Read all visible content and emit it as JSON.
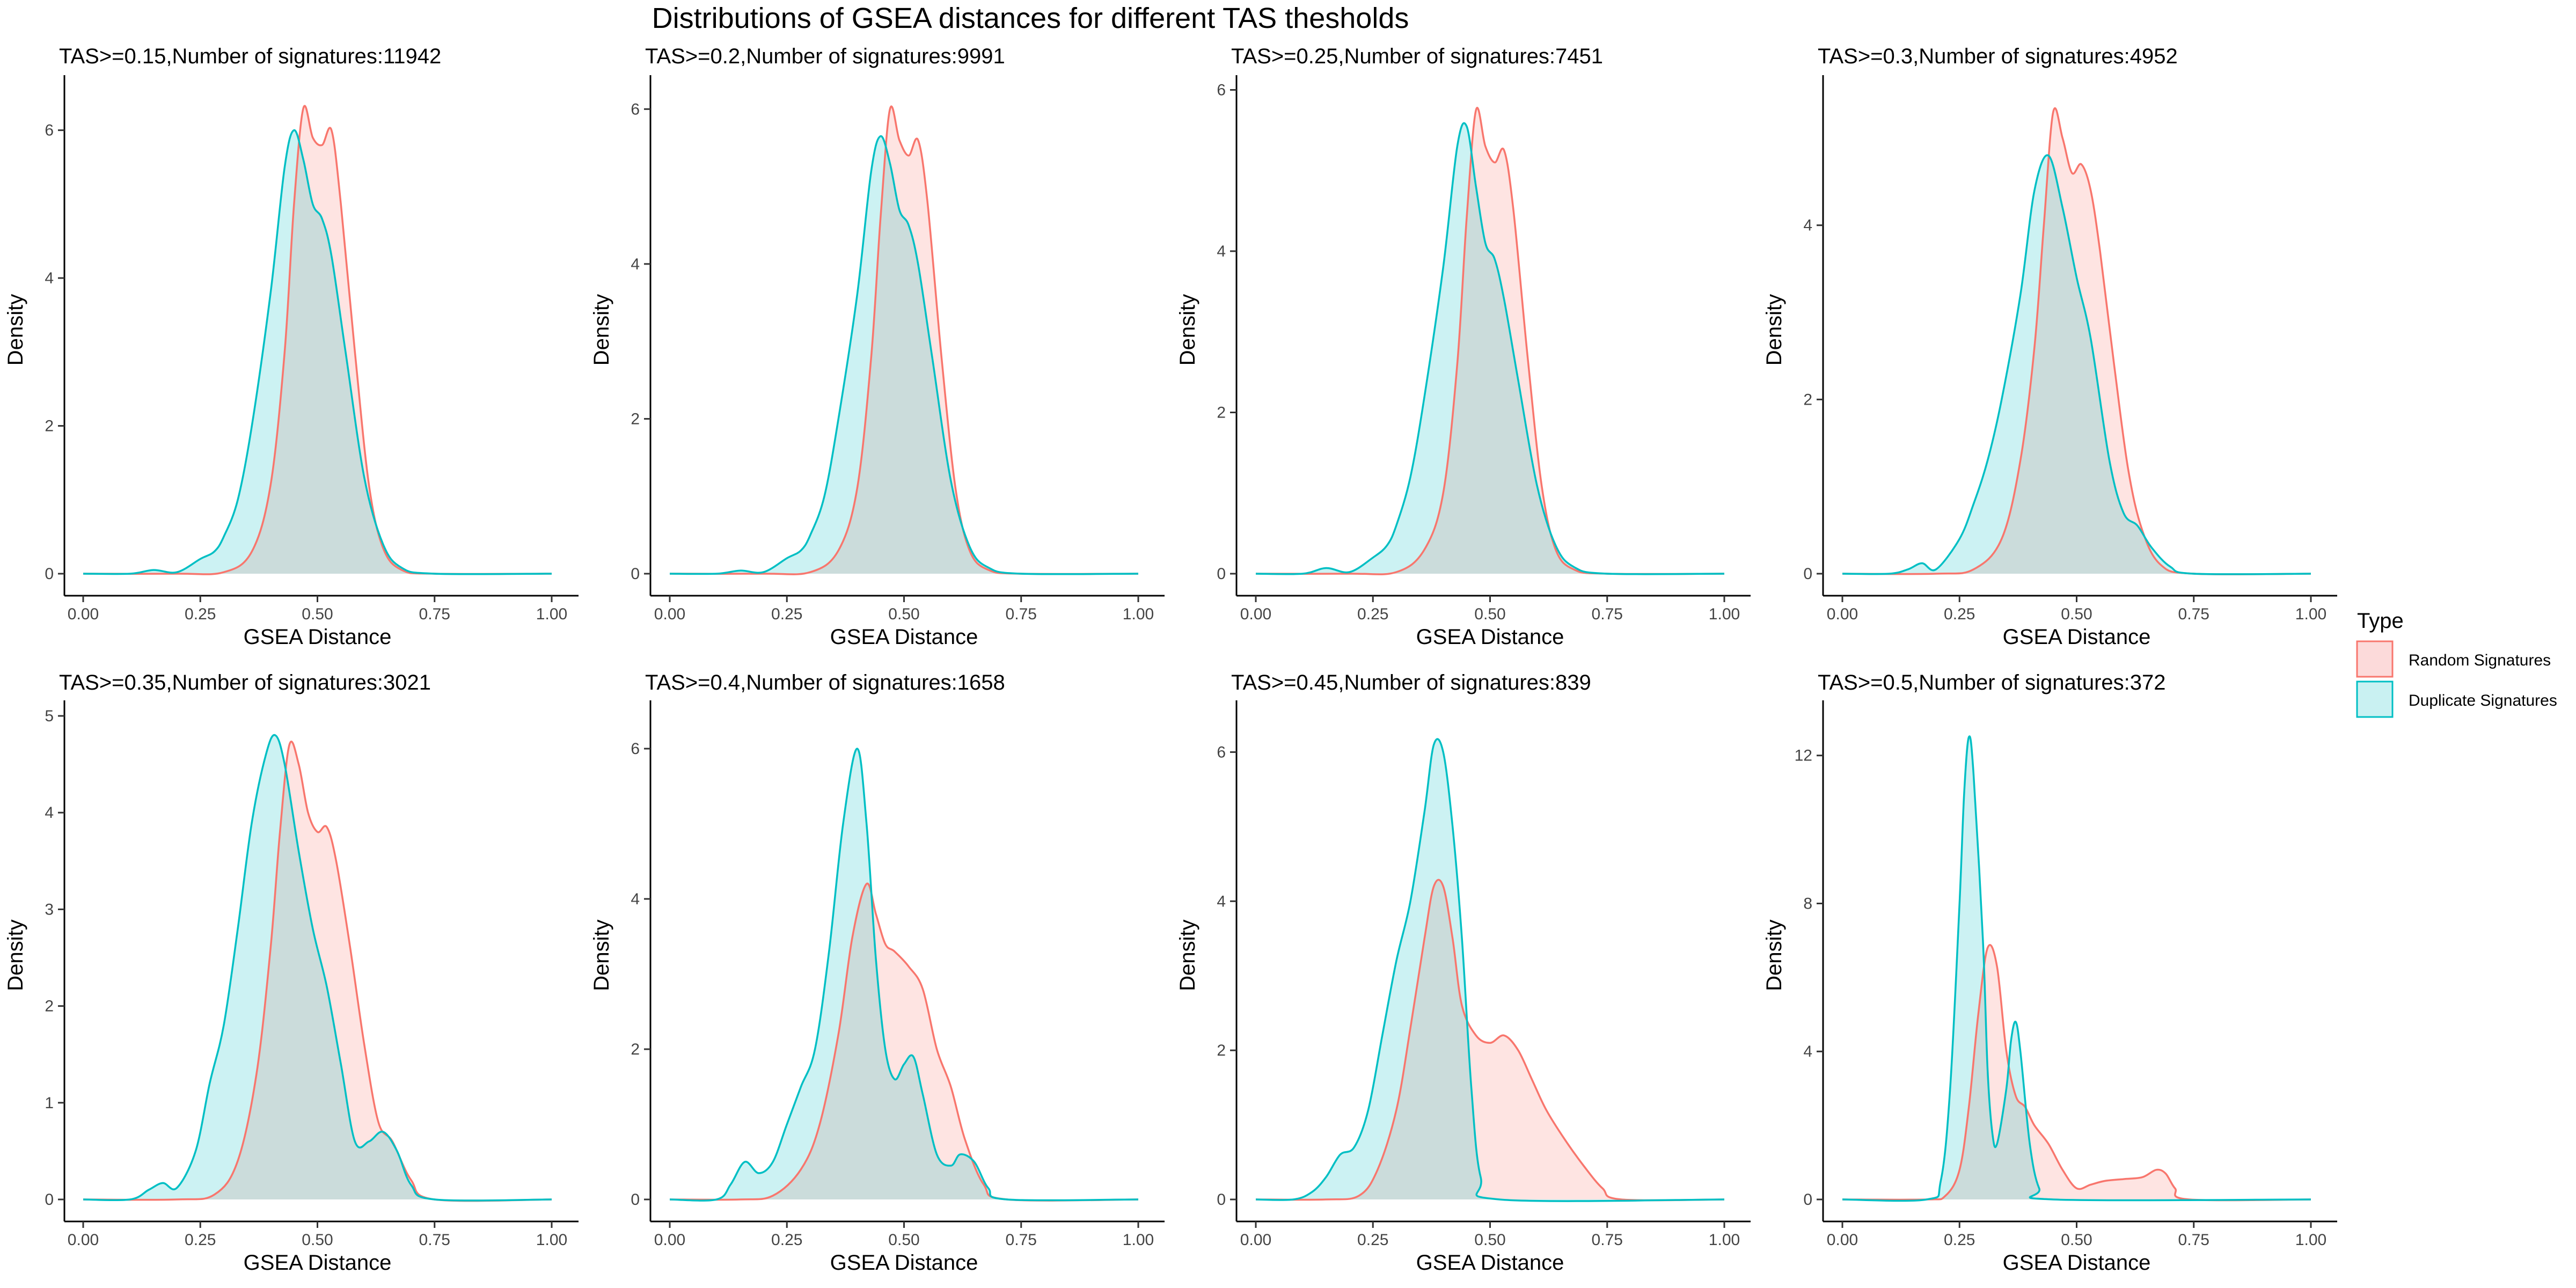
{
  "figure": {
    "title": "Distributions of GSEA distances for different TAS thesholds"
  },
  "legend": {
    "title": "Type",
    "items": [
      {
        "label": "Random Signatures",
        "line_color": "#F8766D",
        "fill_color": "#FCDADA"
      },
      {
        "label": "Duplicate Signatures",
        "line_color": "#00BFC4",
        "fill_color": "#C9F1F2"
      }
    ]
  },
  "chart_data": [
    {
      "type": "area",
      "title": "TAS>=0.15,Number of signatures:11942",
      "xlabel": "GSEA Distance",
      "ylabel": "Density",
      "xlim": [
        0,
        1
      ],
      "ylim": [
        0,
        6.6
      ],
      "xticks": [
        "0.00",
        "0.25",
        "0.50",
        "0.75",
        "1.00"
      ],
      "yticks": [
        0,
        2,
        4,
        6
      ],
      "series": [
        {
          "name": "Random Signatures",
          "x": [
            0,
            0.2,
            0.3,
            0.36,
            0.4,
            0.43,
            0.45,
            0.47,
            0.49,
            0.51,
            0.53,
            0.55,
            0.58,
            0.61,
            0.64,
            0.68,
            0.75,
            1
          ],
          "y": [
            0,
            0,
            0.02,
            0.3,
            1.2,
            3.0,
            5.0,
            6.3,
            5.9,
            5.8,
            6.0,
            5.0,
            3.0,
            1.2,
            0.35,
            0.05,
            0,
            0
          ]
        },
        {
          "name": "Duplicate Signatures",
          "x": [
            0,
            0.1,
            0.15,
            0.2,
            0.25,
            0.28,
            0.3,
            0.33,
            0.36,
            0.4,
            0.43,
            0.45,
            0.47,
            0.49,
            0.51,
            0.53,
            0.56,
            0.6,
            0.64,
            0.68,
            0.75,
            1
          ],
          "y": [
            0,
            0,
            0.05,
            0.02,
            0.2,
            0.3,
            0.5,
            1.0,
            2.0,
            3.8,
            5.5,
            6.0,
            5.6,
            5.0,
            4.8,
            4.3,
            3.0,
            1.3,
            0.4,
            0.08,
            0,
            0
          ]
        }
      ]
    },
    {
      "type": "area",
      "title": "TAS>=0.2,Number of signatures:9991",
      "xlabel": "GSEA Distance",
      "ylabel": "Density",
      "xlim": [
        0,
        1
      ],
      "ylim": [
        0,
        6.3
      ],
      "xticks": [
        "0.00",
        "0.25",
        "0.50",
        "0.75",
        "1.00"
      ],
      "yticks": [
        0,
        2,
        4,
        6
      ],
      "series": [
        {
          "name": "Random Signatures",
          "x": [
            0,
            0.2,
            0.3,
            0.36,
            0.4,
            0.43,
            0.45,
            0.47,
            0.49,
            0.51,
            0.53,
            0.55,
            0.58,
            0.61,
            0.64,
            0.68,
            0.75,
            1
          ],
          "y": [
            0,
            0,
            0.02,
            0.3,
            1.1,
            2.8,
            4.6,
            6.0,
            5.6,
            5.4,
            5.6,
            4.8,
            2.8,
            1.1,
            0.3,
            0.05,
            0,
            0
          ]
        },
        {
          "name": "Duplicate Signatures",
          "x": [
            0,
            0.1,
            0.15,
            0.2,
            0.25,
            0.28,
            0.3,
            0.33,
            0.36,
            0.4,
            0.43,
            0.45,
            0.47,
            0.49,
            0.51,
            0.53,
            0.56,
            0.6,
            0.64,
            0.68,
            0.75,
            1
          ],
          "y": [
            0,
            0,
            0.04,
            0.02,
            0.2,
            0.3,
            0.5,
            1.0,
            2.0,
            3.6,
            5.2,
            5.65,
            5.3,
            4.7,
            4.5,
            4.0,
            2.8,
            1.2,
            0.35,
            0.08,
            0,
            0
          ]
        }
      ]
    },
    {
      "type": "area",
      "title": "TAS>=0.25,Number of signatures:7451",
      "xlabel": "GSEA Distance",
      "ylabel": "Density",
      "xlim": [
        0,
        1
      ],
      "ylim": [
        0,
        6.05
      ],
      "xticks": [
        "0.00",
        "0.25",
        "0.50",
        "0.75",
        "1.00"
      ],
      "yticks": [
        0,
        2,
        4,
        6
      ],
      "series": [
        {
          "name": "Random Signatures",
          "x": [
            0,
            0.2,
            0.3,
            0.36,
            0.4,
            0.43,
            0.45,
            0.47,
            0.49,
            0.51,
            0.53,
            0.55,
            0.58,
            0.61,
            0.64,
            0.68,
            0.75,
            1
          ],
          "y": [
            0,
            0,
            0.02,
            0.3,
            1.0,
            2.6,
            4.4,
            5.75,
            5.3,
            5.1,
            5.25,
            4.5,
            2.7,
            1.1,
            0.3,
            0.05,
            0,
            0
          ]
        },
        {
          "name": "Duplicate Signatures",
          "x": [
            0,
            0.1,
            0.15,
            0.2,
            0.25,
            0.28,
            0.3,
            0.33,
            0.36,
            0.4,
            0.43,
            0.45,
            0.47,
            0.49,
            0.51,
            0.53,
            0.56,
            0.6,
            0.64,
            0.68,
            0.75,
            1
          ],
          "y": [
            0,
            0,
            0.07,
            0.02,
            0.2,
            0.35,
            0.6,
            1.2,
            2.2,
            3.8,
            5.3,
            5.55,
            4.8,
            4.1,
            3.9,
            3.4,
            2.4,
            1.1,
            0.35,
            0.08,
            0,
            0
          ]
        }
      ]
    },
    {
      "type": "area",
      "title": "TAS>=0.3,Number of signatures:4952",
      "xlabel": "GSEA Distance",
      "ylabel": "Density",
      "xlim": [
        0,
        1
      ],
      "ylim": [
        0,
        5.6
      ],
      "xticks": [
        "0.00",
        "0.25",
        "0.50",
        "0.75",
        "1.00"
      ],
      "yticks": [
        0,
        2,
        4
      ],
      "series": [
        {
          "name": "Random Signatures",
          "x": [
            0,
            0.2,
            0.28,
            0.34,
            0.38,
            0.41,
            0.43,
            0.45,
            0.47,
            0.49,
            0.51,
            0.53,
            0.55,
            0.58,
            0.61,
            0.64,
            0.68,
            0.75,
            1
          ],
          "y": [
            0,
            0,
            0.05,
            0.4,
            1.3,
            2.6,
            4.0,
            5.3,
            5.0,
            4.6,
            4.7,
            4.4,
            3.7,
            2.4,
            1.2,
            0.5,
            0.1,
            0,
            0
          ]
        },
        {
          "name": "Duplicate Signatures",
          "x": [
            0,
            0.1,
            0.14,
            0.17,
            0.2,
            0.25,
            0.28,
            0.31,
            0.34,
            0.38,
            0.41,
            0.44,
            0.47,
            0.5,
            0.53,
            0.57,
            0.6,
            0.63,
            0.66,
            0.7,
            0.75,
            1
          ],
          "y": [
            0,
            0,
            0.05,
            0.12,
            0.05,
            0.4,
            0.8,
            1.3,
            2.0,
            3.2,
            4.4,
            4.8,
            4.2,
            3.4,
            2.7,
            1.3,
            0.7,
            0.55,
            0.3,
            0.08,
            0,
            0
          ]
        }
      ]
    },
    {
      "type": "area",
      "title": "TAS>=0.35,Number of signatures:3021",
      "xlabel": "GSEA Distance",
      "ylabel": "Density",
      "xlim": [
        0,
        1
      ],
      "ylim": [
        0,
        5.05
      ],
      "xticks": [
        "0.00",
        "0.25",
        "0.50",
        "0.75",
        "1.00"
      ],
      "yticks": [
        0,
        1,
        2,
        3,
        4,
        5
      ],
      "series": [
        {
          "name": "Random Signatures",
          "x": [
            0,
            0.2,
            0.28,
            0.33,
            0.37,
            0.4,
            0.42,
            0.44,
            0.46,
            0.48,
            0.5,
            0.52,
            0.54,
            0.57,
            0.6,
            0.63,
            0.66,
            0.7,
            0.75,
            1
          ],
          "y": [
            0,
            0,
            0.05,
            0.4,
            1.3,
            2.6,
            3.8,
            4.7,
            4.5,
            4.0,
            3.8,
            3.85,
            3.5,
            2.6,
            1.6,
            0.8,
            0.6,
            0.2,
            0,
            0
          ]
        },
        {
          "name": "Duplicate Signatures",
          "x": [
            0,
            0.1,
            0.14,
            0.17,
            0.2,
            0.24,
            0.27,
            0.3,
            0.33,
            0.36,
            0.39,
            0.41,
            0.43,
            0.46,
            0.49,
            0.52,
            0.55,
            0.58,
            0.61,
            0.64,
            0.67,
            0.7,
            0.75,
            1
          ],
          "y": [
            0,
            0,
            0.1,
            0.17,
            0.12,
            0.5,
            1.2,
            1.8,
            2.8,
            3.9,
            4.6,
            4.8,
            4.5,
            3.6,
            2.8,
            2.2,
            1.4,
            0.6,
            0.6,
            0.7,
            0.5,
            0.15,
            0,
            0
          ]
        }
      ]
    },
    {
      "type": "area",
      "title": "TAS>=0.4,Number of signatures:1658",
      "xlabel": "GSEA Distance",
      "ylabel": "Density",
      "xlim": [
        0,
        1
      ],
      "ylim": [
        0,
        6.5
      ],
      "xticks": [
        "0.00",
        "0.25",
        "0.50",
        "0.75",
        "1.00"
      ],
      "yticks": [
        0,
        2,
        4,
        6
      ],
      "series": [
        {
          "name": "Random Signatures",
          "x": [
            0,
            0.15,
            0.22,
            0.28,
            0.32,
            0.36,
            0.39,
            0.42,
            0.44,
            0.46,
            0.48,
            0.51,
            0.54,
            0.57,
            0.6,
            0.63,
            0.67,
            0.72,
            1
          ],
          "y": [
            0,
            0,
            0.05,
            0.4,
            1.0,
            2.2,
            3.5,
            4.2,
            3.8,
            3.4,
            3.3,
            3.1,
            2.8,
            2.0,
            1.5,
            0.8,
            0.2,
            0,
            0
          ]
        },
        {
          "name": "Duplicate Signatures",
          "x": [
            0,
            0.1,
            0.13,
            0.16,
            0.19,
            0.22,
            0.25,
            0.28,
            0.31,
            0.34,
            0.37,
            0.4,
            0.42,
            0.44,
            0.46,
            0.48,
            0.5,
            0.52,
            0.54,
            0.57,
            0.6,
            0.62,
            0.65,
            0.68,
            0.72,
            1
          ],
          "y": [
            0,
            0,
            0.2,
            0.5,
            0.35,
            0.5,
            1.0,
            1.5,
            2.0,
            3.3,
            5.0,
            6.0,
            5.0,
            3.2,
            2.0,
            1.6,
            1.8,
            1.9,
            1.4,
            0.6,
            0.45,
            0.6,
            0.5,
            0.15,
            0,
            0
          ]
        }
      ]
    },
    {
      "type": "area",
      "title": "TAS>=0.45,Number of signatures:839",
      "xlabel": "GSEA Distance",
      "ylabel": "Density",
      "xlim": [
        0,
        1
      ],
      "ylim": [
        0,
        6.55
      ],
      "xticks": [
        "0.00",
        "0.25",
        "0.50",
        "0.75",
        "1.00"
      ],
      "yticks": [
        0,
        2,
        4,
        6
      ],
      "series": [
        {
          "name": "Random Signatures",
          "x": [
            0,
            0.15,
            0.22,
            0.26,
            0.3,
            0.33,
            0.36,
            0.38,
            0.4,
            0.42,
            0.44,
            0.47,
            0.5,
            0.53,
            0.56,
            0.59,
            0.62,
            0.66,
            0.7,
            0.74,
            0.78,
            1
          ],
          "y": [
            0,
            0,
            0.05,
            0.4,
            1.2,
            2.3,
            3.5,
            4.2,
            4.2,
            3.5,
            2.6,
            2.2,
            2.1,
            2.2,
            2.0,
            1.6,
            1.2,
            0.8,
            0.45,
            0.15,
            0,
            0
          ]
        },
        {
          "name": "Duplicate Signatures",
          "x": [
            0,
            0.08,
            0.12,
            0.15,
            0.18,
            0.21,
            0.24,
            0.27,
            0.3,
            0.33,
            0.36,
            0.38,
            0.4,
            0.42,
            0.44,
            0.46,
            0.48,
            0.52,
            1
          ],
          "y": [
            0,
            0,
            0.1,
            0.3,
            0.6,
            0.7,
            1.2,
            2.2,
            3.2,
            4.0,
            5.2,
            6.1,
            6.0,
            5.0,
            3.5,
            1.5,
            0.3,
            0,
            0
          ]
        }
      ]
    },
    {
      "type": "area",
      "title": "TAS>=0.5,Number of signatures:372",
      "xlabel": "GSEA Distance",
      "ylabel": "Density",
      "xlim": [
        0,
        1
      ],
      "ylim": [
        0,
        13.2
      ],
      "xticks": [
        "0.00",
        "0.25",
        "0.50",
        "0.75",
        "1.00"
      ],
      "yticks": [
        0,
        4,
        8,
        12
      ],
      "series": [
        {
          "name": "Random Signatures",
          "x": [
            0,
            0.18,
            0.22,
            0.25,
            0.27,
            0.29,
            0.31,
            0.33,
            0.35,
            0.37,
            0.39,
            0.41,
            0.44,
            0.47,
            0.5,
            0.53,
            0.56,
            0.6,
            0.64,
            0.67,
            0.69,
            0.71,
            0.74,
            1
          ],
          "y": [
            0,
            0,
            0.1,
            0.8,
            2.5,
            5.0,
            6.8,
            6.3,
            4.0,
            2.8,
            2.5,
            2.0,
            1.5,
            0.8,
            0.3,
            0.4,
            0.5,
            0.55,
            0.6,
            0.8,
            0.7,
            0.3,
            0,
            0
          ]
        },
        {
          "name": "Duplicate Signatures",
          "x": [
            0,
            0.18,
            0.21,
            0.23,
            0.25,
            0.26,
            0.27,
            0.28,
            0.3,
            0.31,
            0.32,
            0.33,
            0.35,
            0.36,
            0.37,
            0.38,
            0.4,
            0.42,
            0.45,
            1
          ],
          "y": [
            0,
            0,
            0.5,
            3.0,
            8.0,
            11.0,
            12.5,
            11.5,
            7.0,
            3.5,
            1.8,
            1.5,
            3.0,
            4.3,
            4.8,
            4.0,
            1.5,
            0.3,
            0,
            0
          ]
        }
      ]
    }
  ]
}
